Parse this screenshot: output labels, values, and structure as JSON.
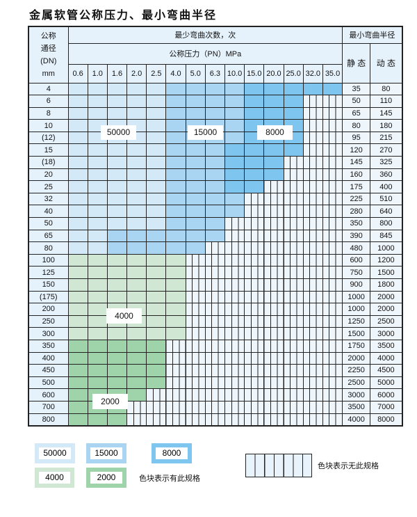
{
  "title": "金属软管公称压力、最小弯曲半径",
  "header": {
    "dn_label": [
      "公称",
      "通径",
      "(DN)",
      "mm"
    ],
    "bend_count_label": "最少弯曲次数，次",
    "pressure_label": "公称压力（PN）MPa",
    "radius_label": "最小弯曲半径",
    "static_label": "静 态",
    "dynamic_label": "动 态",
    "pressures": [
      "0.6",
      "1.0",
      "1.6",
      "2.0",
      "2.5",
      "4.0",
      "5.0",
      "6.3",
      "10.0",
      "15.0",
      "20.0",
      "25.0",
      "32.0",
      "35.0"
    ]
  },
  "categories": {
    "a": {
      "label": "50000",
      "color": "#d3e9f8"
    },
    "b": {
      "label": "15000",
      "color": "#a9d5f3"
    },
    "c": {
      "label": "8000",
      "color": "#7ec5ef"
    },
    "d": {
      "label": "4000",
      "color": "#d0e7d4"
    },
    "e": {
      "label": "2000",
      "color": "#9fd3aa"
    }
  },
  "rows": [
    {
      "dn": "4",
      "static": "35",
      "dynamic": "80",
      "spans": [
        [
          "a",
          5
        ],
        [
          "b",
          4
        ],
        [
          "c",
          5
        ]
      ]
    },
    {
      "dn": "6",
      "static": "50",
      "dynamic": "110",
      "spans": [
        [
          "a",
          5
        ],
        [
          "b",
          4
        ],
        [
          "c",
          3
        ]
      ]
    },
    {
      "dn": "8",
      "static": "65",
      "dynamic": "145",
      "spans": [
        [
          "a",
          5
        ],
        [
          "b",
          4
        ],
        [
          "c",
          3
        ]
      ]
    },
    {
      "dn": "10",
      "static": "80",
      "dynamic": "180",
      "spans": [
        [
          "a",
          5
        ],
        [
          "b",
          4
        ],
        [
          "c",
          3
        ]
      ]
    },
    {
      "dn": "(12)",
      "static": "95",
      "dynamic": "215",
      "spans": [
        [
          "a",
          5
        ],
        [
          "b",
          4
        ],
        [
          "c",
          3
        ]
      ]
    },
    {
      "dn": "15",
      "static": "120",
      "dynamic": "270",
      "spans": [
        [
          "a",
          5
        ],
        [
          "b",
          3
        ],
        [
          "c",
          4
        ]
      ]
    },
    {
      "dn": "(18)",
      "static": "145",
      "dynamic": "325",
      "spans": [
        [
          "a",
          5
        ],
        [
          "b",
          3
        ],
        [
          "c",
          3
        ]
      ]
    },
    {
      "dn": "20",
      "static": "160",
      "dynamic": "360",
      "spans": [
        [
          "a",
          5
        ],
        [
          "b",
          3
        ],
        [
          "c",
          3
        ]
      ]
    },
    {
      "dn": "25",
      "static": "175",
      "dynamic": "400",
      "spans": [
        [
          "a",
          5
        ],
        [
          "b",
          3
        ],
        [
          "c",
          2
        ]
      ]
    },
    {
      "dn": "32",
      "static": "225",
      "dynamic": "510",
      "spans": [
        [
          "a",
          5
        ],
        [
          "b",
          4
        ]
      ]
    },
    {
      "dn": "40",
      "static": "280",
      "dynamic": "640",
      "spans": [
        [
          "a",
          5
        ],
        [
          "b",
          4
        ]
      ]
    },
    {
      "dn": "50",
      "static": "350",
      "dynamic": "800",
      "spans": [
        [
          "a",
          5
        ],
        [
          "b",
          3
        ]
      ]
    },
    {
      "dn": "65",
      "static": "390",
      "dynamic": "845",
      "spans": [
        [
          "a",
          2
        ],
        [
          "b",
          6
        ]
      ]
    },
    {
      "dn": "80",
      "static": "480",
      "dynamic": "1000",
      "spans": [
        [
          "a",
          2
        ],
        [
          "b",
          5
        ]
      ]
    },
    {
      "dn": "100",
      "static": "600",
      "dynamic": "1200",
      "spans": [
        [
          "d",
          6
        ]
      ]
    },
    {
      "dn": "125",
      "static": "750",
      "dynamic": "1500",
      "spans": [
        [
          "d",
          6
        ]
      ]
    },
    {
      "dn": "150",
      "static": "900",
      "dynamic": "1800",
      "spans": [
        [
          "d",
          6
        ]
      ]
    },
    {
      "dn": "(175)",
      "static": "1000",
      "dynamic": "2000",
      "spans": [
        [
          "d",
          6
        ]
      ]
    },
    {
      "dn": "200",
      "static": "1000",
      "dynamic": "2000",
      "spans": [
        [
          "d",
          6
        ]
      ]
    },
    {
      "dn": "250",
      "static": "1250",
      "dynamic": "2500",
      "spans": [
        [
          "d",
          6
        ]
      ]
    },
    {
      "dn": "300",
      "static": "1500",
      "dynamic": "3000",
      "spans": [
        [
          "d",
          6
        ]
      ]
    },
    {
      "dn": "350",
      "static": "1750",
      "dynamic": "3500",
      "spans": [
        [
          "e",
          5
        ]
      ]
    },
    {
      "dn": "400",
      "static": "2000",
      "dynamic": "4000",
      "spans": [
        [
          "e",
          5
        ]
      ]
    },
    {
      "dn": "450",
      "static": "2250",
      "dynamic": "4500",
      "spans": [
        [
          "e",
          5
        ]
      ]
    },
    {
      "dn": "500",
      "static": "2500",
      "dynamic": "5000",
      "spans": [
        [
          "e",
          5
        ]
      ]
    },
    {
      "dn": "600",
      "static": "3000",
      "dynamic": "6000",
      "spans": [
        [
          "e",
          4
        ]
      ]
    },
    {
      "dn": "700",
      "static": "3500",
      "dynamic": "7000",
      "spans": [
        [
          "e",
          3
        ]
      ]
    },
    {
      "dn": "800",
      "static": "4000",
      "dynamic": "8000",
      "spans": [
        [
          "e",
          3
        ]
      ]
    }
  ],
  "region_labels": {
    "a": "50000",
    "b": "15000",
    "c": "8000",
    "d": "4000",
    "e": "2000"
  },
  "legend": {
    "items": [
      "50000",
      "15000",
      "8000",
      "4000",
      "2000"
    ],
    "has_spec_note": "色块表示有此规格",
    "no_spec_note": "色块表示无此规格"
  }
}
